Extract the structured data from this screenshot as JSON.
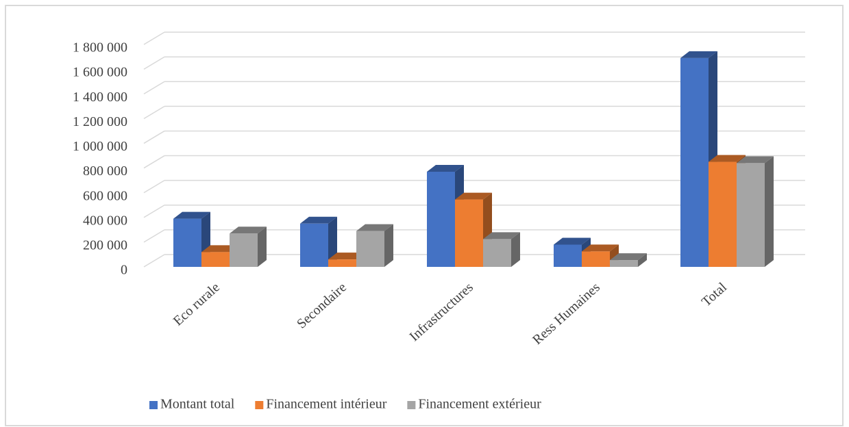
{
  "chart_data": {
    "type": "bar3d",
    "categories": [
      "Eco rurale",
      "Secondaire",
      "Infrastructures",
      "Ress Humaines",
      "Total"
    ],
    "series": [
      {
        "name": "Montant total",
        "color": "#4472c4",
        "values": [
          390000,
          350000,
          770000,
          180000,
          1690000
        ]
      },
      {
        "name": "Financement intérieur",
        "color": "#ed7d31",
        "values": [
          120000,
          60000,
          545000,
          125000,
          850000
        ]
      },
      {
        "name": "Financement extérieur",
        "color": "#a5a5a5",
        "values": [
          270000,
          290000,
          225000,
          55000,
          840000
        ]
      }
    ],
    "ylim": [
      0,
      1800000
    ],
    "yticks": [
      0,
      {
        "value": 200000,
        "label": "200 000"
      },
      {
        "value": 400000,
        "label": "400 000"
      },
      {
        "value": 600000,
        "label": "600 000"
      },
      {
        "value": 800000,
        "label": "800 000"
      },
      {
        "value": 1000000,
        "label": "1 000 000"
      },
      {
        "value": 1200000,
        "label": "1 200 000"
      },
      {
        "value": 1400000,
        "label": "1 400 000"
      },
      {
        "value": 1600000,
        "label": "1 600 000"
      },
      {
        "value": 1800000,
        "label": "1 800 000"
      }
    ],
    "grid": true,
    "legend": "bottom"
  }
}
